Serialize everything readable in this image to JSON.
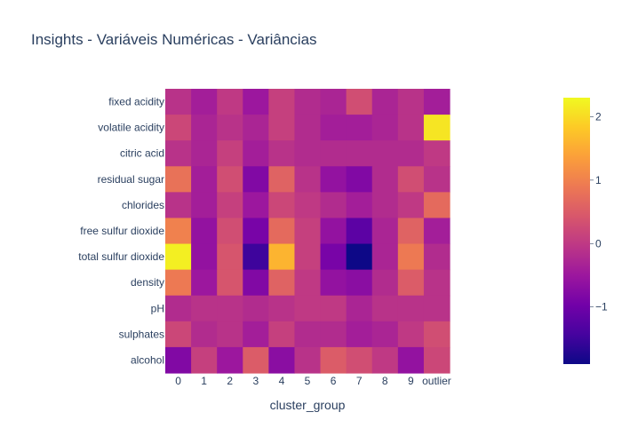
{
  "chart_data": {
    "type": "heatmap",
    "title": "Insights - Variáveis Numéricas - Variâncias",
    "xlabel": "cluster_group",
    "ylabel": "",
    "x": [
      "0",
      "1",
      "2",
      "3",
      "4",
      "5",
      "6",
      "7",
      "8",
      "9",
      "outlier"
    ],
    "y": [
      "fixed acidity",
      "volatile acidity",
      "citric acid",
      "residual sugar",
      "chlorides",
      "free sulfur dioxide",
      "total sulfur dioxide",
      "density",
      "pH",
      "sulphates",
      "alcohol"
    ],
    "z": [
      [
        -0.1,
        -0.4,
        0.0,
        -0.5,
        0.1,
        -0.2,
        -0.3,
        0.3,
        -0.3,
        -0.1,
        -0.4
      ],
      [
        0.2,
        -0.3,
        -0.1,
        -0.3,
        0.1,
        -0.2,
        -0.4,
        -0.4,
        -0.3,
        -0.1,
        2.1
      ],
      [
        -0.1,
        -0.3,
        0.1,
        -0.4,
        -0.1,
        -0.2,
        -0.2,
        -0.2,
        -0.2,
        -0.2,
        0.0
      ],
      [
        0.8,
        -0.4,
        0.3,
        -0.8,
        0.6,
        -0.1,
        -0.6,
        -0.8,
        -0.2,
        0.3,
        -0.1
      ],
      [
        -0.1,
        -0.4,
        0.1,
        -0.5,
        0.2,
        0.0,
        -0.2,
        -0.4,
        -0.2,
        0.0,
        0.7
      ],
      [
        1.0,
        -0.6,
        0.3,
        -0.9,
        0.7,
        0.1,
        -0.6,
        -1.2,
        -0.3,
        0.6,
        -0.4
      ],
      [
        2.2,
        -0.6,
        0.4,
        -1.5,
        1.6,
        0.1,
        -0.9,
        -1.9,
        -0.3,
        0.9,
        -0.2
      ],
      [
        0.9,
        -0.5,
        0.4,
        -0.8,
        0.6,
        0.0,
        -0.6,
        -0.7,
        -0.2,
        0.5,
        -0.1
      ],
      [
        -0.2,
        -0.1,
        -0.1,
        -0.2,
        -0.1,
        0.0,
        0.0,
        -0.3,
        -0.1,
        -0.1,
        -0.1
      ],
      [
        0.2,
        -0.2,
        -0.1,
        -0.4,
        0.1,
        -0.2,
        -0.2,
        -0.4,
        -0.3,
        0.0,
        0.3
      ],
      [
        -0.8,
        0.1,
        -0.5,
        0.5,
        -0.7,
        -0.1,
        0.5,
        0.3,
        0.0,
        -0.6,
        0.2
      ]
    ],
    "zmin": -1.9,
    "zmax": 2.3,
    "colorscale": "plasma",
    "colorbar_ticks": [
      -1,
      0,
      1,
      2
    ],
    "grid": false,
    "colorbar": "right"
  }
}
